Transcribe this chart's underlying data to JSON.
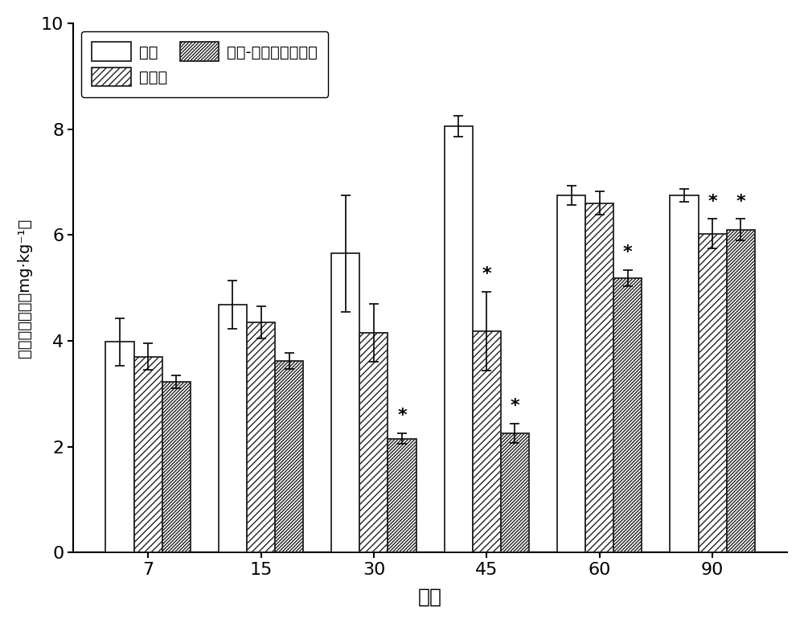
{
  "days": [
    7,
    15,
    30,
    45,
    60,
    90
  ],
  "control_values": [
    3.98,
    4.68,
    5.65,
    8.05,
    6.75,
    6.75
  ],
  "control_errors": [
    0.45,
    0.45,
    1.1,
    0.2,
    0.18,
    0.12
  ],
  "biochar_values": [
    3.7,
    4.35,
    4.15,
    4.18,
    6.6,
    6.02
  ],
  "biochar_errors": [
    0.25,
    0.3,
    0.55,
    0.75,
    0.22,
    0.28
  ],
  "modified_values": [
    3.22,
    3.62,
    2.15,
    2.25,
    5.18,
    6.1
  ],
  "modified_errors": [
    0.12,
    0.15,
    0.1,
    0.18,
    0.15,
    0.2
  ],
  "asterisk_days_modified": [
    30,
    45,
    60,
    90
  ],
  "asterisk_days_biochar": [
    45,
    90
  ],
  "ylabel": "有效态镉含量（mg·kg⁻¹）",
  "xlabel": "天数",
  "ylim": [
    0,
    10
  ],
  "yticks": [
    0,
    2,
    4,
    6,
    8,
    10
  ],
  "legend_label_control": "对照",
  "legend_label_biochar": "生物炭",
  "legend_label_modified": "硫基-疏基改性生物炭",
  "bar_width": 0.25,
  "figure_bg": "#ffffff",
  "bar_color": "#ffffff",
  "edgecolor": "#222222",
  "hatch_control": "",
  "hatch_biochar": "////",
  "hatch_modified": "////////"
}
